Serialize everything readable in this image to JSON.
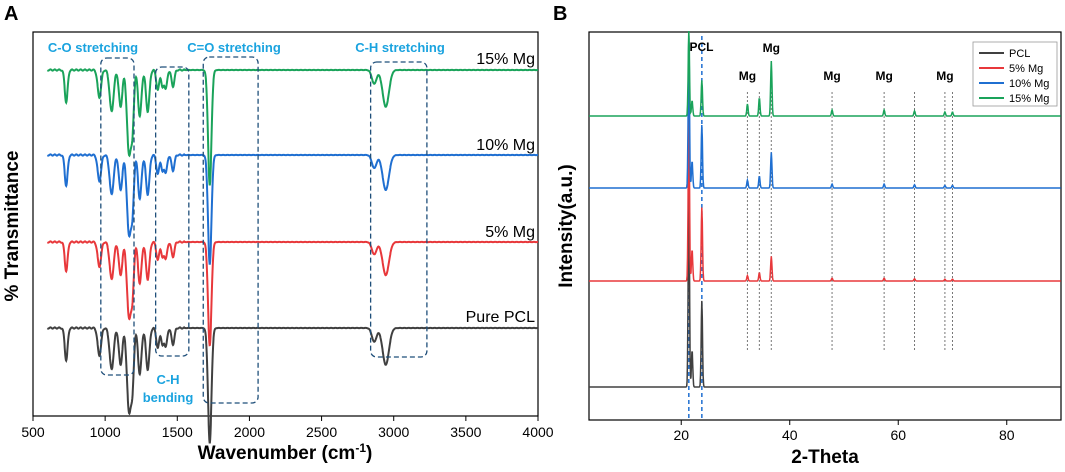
{
  "chart_data": [
    {
      "panel": "A",
      "type": "line",
      "title": "",
      "xlabel": "Wavenumber (cm",
      "xlabel_sup": "-1",
      "xlabel_close": ")",
      "ylabel": "% Transmittance",
      "xlim": [
        500,
        4000
      ],
      "xticks": [
        500,
        1000,
        1500,
        2000,
        2500,
        3000,
        3500,
        4000
      ],
      "grid": false,
      "series": [
        {
          "name": "Pure PCL",
          "color": "#404040",
          "offset": 0
        },
        {
          "name": "5% Mg",
          "color": "#e8383b",
          "offset": 1
        },
        {
          "name": "10% Mg",
          "color": "#1f6fd1",
          "offset": 2
        },
        {
          "name": "15% Mg",
          "color": "#1aa35a",
          "offset": 3
        }
      ],
      "bands": [
        {
          "x": 730,
          "depth": 0.35,
          "width": 10
        },
        {
          "x": 960,
          "depth": 0.3,
          "width": 12
        },
        {
          "x": 1045,
          "depth": 0.45,
          "width": 14
        },
        {
          "x": 1107,
          "depth": 0.4,
          "width": 12
        },
        {
          "x": 1165,
          "depth": 0.9,
          "width": 14
        },
        {
          "x": 1190,
          "depth": 0.55,
          "width": 10
        },
        {
          "x": 1240,
          "depth": 0.5,
          "width": 12
        },
        {
          "x": 1295,
          "depth": 0.45,
          "width": 12
        },
        {
          "x": 1365,
          "depth": 0.22,
          "width": 10
        },
        {
          "x": 1397,
          "depth": 0.18,
          "width": 8
        },
        {
          "x": 1420,
          "depth": 0.2,
          "width": 10
        },
        {
          "x": 1470,
          "depth": 0.18,
          "width": 10
        },
        {
          "x": 1725,
          "depth": 1.25,
          "width": 12
        },
        {
          "x": 2865,
          "depth": 0.15,
          "width": 16
        },
        {
          "x": 2945,
          "depth": 0.4,
          "width": 22
        }
      ],
      "annotations": [
        {
          "text": "C-O stretching",
          "region": [
            970,
            1200
          ]
        },
        {
          "text": "C=O stretching",
          "region": [
            1680,
            2060
          ]
        },
        {
          "text": "C-H stretching",
          "region": [
            2840,
            3230
          ]
        },
        {
          "text": "C-H",
          "region": [
            1350,
            1580
          ]
        },
        {
          "text": "bending",
          "region": [
            1350,
            1580
          ]
        }
      ]
    },
    {
      "panel": "B",
      "type": "line",
      "title": "",
      "xlabel": "2-Theta",
      "ylabel": "Intensity(a.u.)",
      "xlim": [
        3,
        90
      ],
      "xticks": [
        20,
        40,
        60,
        80
      ],
      "grid": false,
      "legend_position": "top-right",
      "series": [
        {
          "name": "PCL",
          "color": "#404040"
        },
        {
          "name": "5% Mg",
          "color": "#e8383b"
        },
        {
          "name": "10% Mg",
          "color": "#1f6fd1"
        },
        {
          "name": "15% Mg",
          "color": "#1aa35a"
        }
      ],
      "pcl_peaks": [
        {
          "x": 21.4,
          "height": 1.0
        },
        {
          "x": 22.0,
          "height": 0.18
        },
        {
          "x": 23.8,
          "height": 0.42
        }
      ],
      "mg_peaks": [
        {
          "x": 32.2,
          "height": 0.12
        },
        {
          "x": 34.4,
          "height": 0.18
        },
        {
          "x": 36.6,
          "height": 0.55
        },
        {
          "x": 47.8,
          "height": 0.06
        },
        {
          "x": 57.4,
          "height": 0.06
        },
        {
          "x": 63.0,
          "height": 0.05
        },
        {
          "x": 68.6,
          "height": 0.04
        },
        {
          "x": 70.0,
          "height": 0.04
        }
      ],
      "mg_reference_lines": [
        32.2,
        34.4,
        36.6,
        47.8,
        57.4,
        63.0,
        68.6,
        70.0
      ],
      "pcl_reference_lines": [
        21.4,
        23.8
      ],
      "peak_labels": [
        {
          "text": "PCL",
          "x": 23.0
        },
        {
          "text": "Mg",
          "x": 36.6
        },
        {
          "text": "Mg",
          "x": 32.2
        },
        {
          "text": "Mg",
          "x": 47.8
        },
        {
          "text": "Mg",
          "x": 57.4
        },
        {
          "text": "Mg",
          "x": 68.6
        }
      ]
    }
  ],
  "colors": {
    "accent_blue": "#1aa3df"
  }
}
